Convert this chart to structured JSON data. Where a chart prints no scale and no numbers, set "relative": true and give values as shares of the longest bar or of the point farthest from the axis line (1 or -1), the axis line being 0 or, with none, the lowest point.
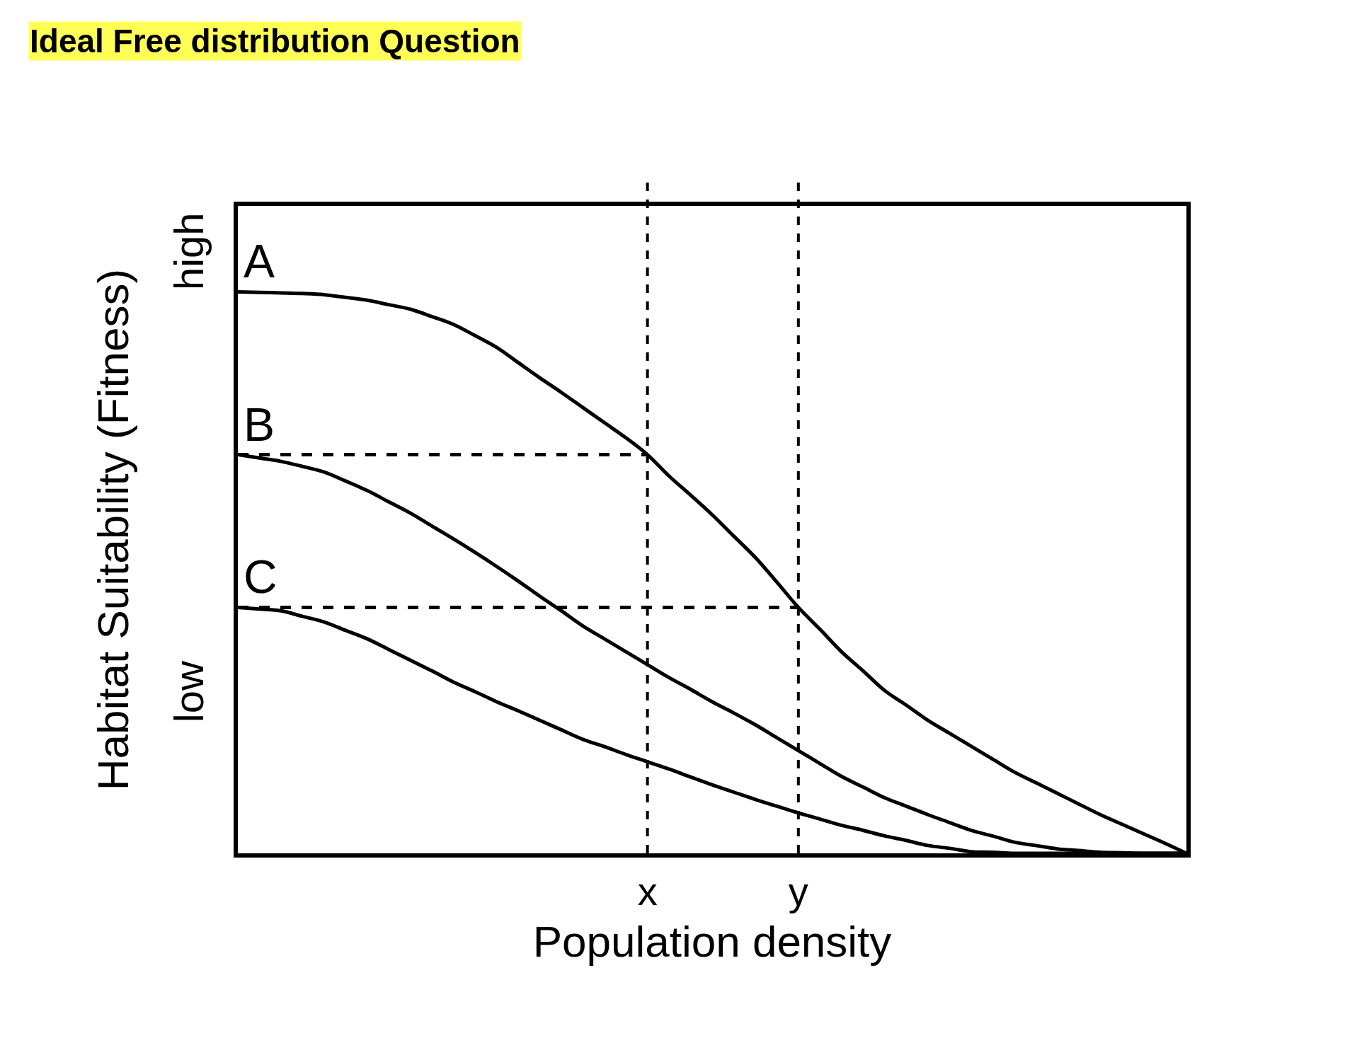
{
  "chart_data": {
    "type": "line",
    "title": "Ideal Free distribution Question",
    "xlabel": "Population density",
    "ylabel": "Habitat Suitability (Fitness)",
    "relative": true,
    "legend": false,
    "marker": "none",
    "categories": [
      null,
      null,
      null,
      null,
      null,
      null,
      null,
      null,
      null,
      null,
      null,
      null,
      null,
      null,
      null,
      null,
      null,
      null,
      null,
      "x",
      null,
      null,
      null,
      null,
      null,
      null,
      "y",
      null,
      null,
      null,
      null,
      null,
      null,
      null,
      null,
      null,
      null,
      null,
      null,
      null,
      null,
      null,
      null,
      null,
      null
    ],
    "series": [
      {
        "name": "A",
        "color": "#000000",
        "values": [
          1.0,
          0.999,
          0.998,
          0.997,
          0.995,
          0.99,
          0.985,
          0.977,
          0.969,
          0.956,
          0.942,
          0.922,
          0.901,
          0.874,
          0.847,
          0.821,
          0.794,
          0.767,
          0.74,
          0.71,
          0.672,
          0.638,
          0.603,
          0.565,
          0.527,
          0.483,
          0.438,
          0.399,
          0.359,
          0.325,
          0.29,
          0.264,
          0.237,
          0.214,
          0.191,
          0.168,
          0.145,
          0.126,
          0.107,
          0.088,
          0.069,
          0.052,
          0.035,
          0.018,
          0
        ]
      },
      {
        "name": "B",
        "color": "#000000",
        "values": [
          0.71,
          0.704,
          0.698,
          0.689,
          0.679,
          0.663,
          0.646,
          0.626,
          0.606,
          0.583,
          0.56,
          0.536,
          0.511,
          0.485,
          0.458,
          0.432,
          0.405,
          0.382,
          0.359,
          0.336,
          0.313,
          0.292,
          0.27,
          0.25,
          0.229,
          0.206,
          0.183,
          0.16,
          0.137,
          0.118,
          0.099,
          0.084,
          0.069,
          0.055,
          0.041,
          0.031,
          0.02,
          0.014,
          0.008,
          0.005,
          0.002,
          0.001,
          0,
          0,
          0
        ]
      },
      {
        "name": "C",
        "color": "#000000",
        "values": [
          0.438,
          0.435,
          0.432,
          0.422,
          0.412,
          0.397,
          0.382,
          0.363,
          0.344,
          0.325,
          0.305,
          0.288,
          0.27,
          0.254,
          0.237,
          0.22,
          0.203,
          0.19,
          0.176,
          0.163,
          0.15,
          0.136,
          0.122,
          0.109,
          0.096,
          0.084,
          0.072,
          0.061,
          0.05,
          0.041,
          0.031,
          0.023,
          0.014,
          0.009,
          0.003,
          0.002,
          0,
          0,
          0,
          0,
          0,
          0,
          0,
          0,
          0
        ]
      },
      {
        "color": "#000000",
        "line_style": "dashed",
        "values": [
          0.71,
          0.71,
          0.71,
          0.71,
          0.71,
          0.71,
          0.71,
          0.71,
          0.71,
          0.71,
          0.71,
          0.71,
          0.71,
          0.71,
          0.71,
          0.71,
          0.71,
          0.71,
          0.71,
          0.71,
          null,
          null,
          null,
          null,
          null,
          null,
          null,
          null,
          null,
          null,
          null,
          null,
          null,
          null,
          null,
          null,
          null,
          null,
          null,
          null,
          null,
          null,
          null,
          null,
          null
        ]
      },
      {
        "color": "#000000",
        "line_style": "dashed",
        "values": [
          0.438,
          0.438,
          0.438,
          0.438,
          0.438,
          0.438,
          0.438,
          0.438,
          0.438,
          0.438,
          0.438,
          0.438,
          0.438,
          0.438,
          0.438,
          0.438,
          0.438,
          0.438,
          0.438,
          0.438,
          0.438,
          0.438,
          0.438,
          0.438,
          0.438,
          0.438,
          0.438,
          null,
          null,
          null,
          null,
          null,
          null,
          null,
          null,
          null,
          null,
          null,
          null,
          null,
          null,
          null,
          null,
          null,
          null
        ]
      }
    ],
    "annotations": [
      "high",
      "low"
    ]
  }
}
